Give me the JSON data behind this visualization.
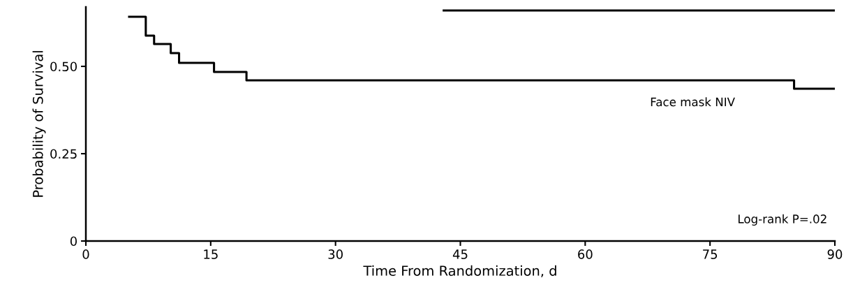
{
  "chart_data": {
    "type": "step",
    "xlabel": "Time From Randomization, d",
    "ylabel": "Probability of Survival",
    "series": [
      {
        "color": "#000000",
        "x": [
          5.2,
          7.2,
          8.2,
          10.2,
          11.2,
          15.4,
          19.3,
          85.1,
          90
        ],
        "values": [
          0.642,
          0.588,
          0.564,
          0.538,
          0.51,
          0.484,
          0.46,
          0.436,
          0.436
        ]
      },
      {
        "color": "#000000",
        "x": [
          43,
          90
        ],
        "values": [
          0.66,
          0.66
        ]
      }
    ],
    "xlim": [
      0,
      90
    ],
    "xticks": [
      0,
      15,
      30,
      45,
      60,
      75,
      90
    ],
    "ylim": [
      0,
      0.67
    ],
    "yticks": [
      0,
      {
        "value": 0.25,
        "label": "0.25"
      },
      {
        "value": 0.5,
        "label": "0.50"
      }
    ],
    "annotations": [
      "Face mask NIV",
      "Log-rank P=.02"
    ],
    "grid": false,
    "legend": false
  }
}
